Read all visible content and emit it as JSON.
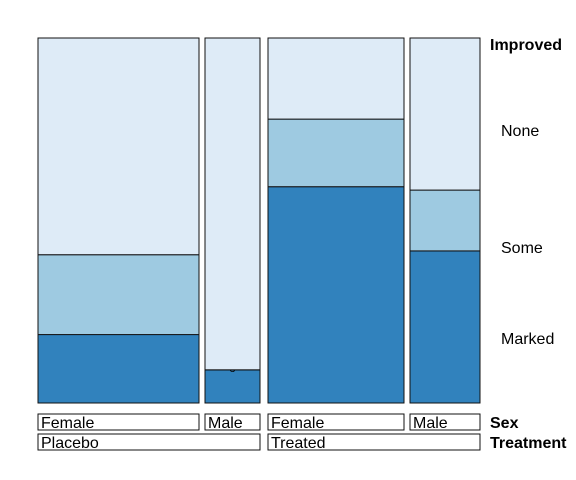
{
  "chart_data": {
    "type": "mosaic",
    "variables": {
      "response": "Improved",
      "row_1": "Sex",
      "row_2": "Treatment"
    },
    "treatment_levels": [
      "Placebo",
      "Treated"
    ],
    "sex_levels": [
      "Female",
      "Male"
    ],
    "improved_levels": [
      "None",
      "Some",
      "Marked"
    ],
    "colors": {
      "None": "#DEEBF7",
      "Some": "#9ECAE1",
      "Marked": "#3182BD"
    },
    "groups": [
      {
        "treatment": "Placebo",
        "sex": "Female",
        "counts": {
          "None": 19,
          "Some": 7,
          "Marked": 6
        }
      },
      {
        "treatment": "Placebo",
        "sex": "Male",
        "counts": {
          "None": 10,
          "Some": 0,
          "Marked": 1
        }
      },
      {
        "treatment": "Treated",
        "sex": "Female",
        "counts": {
          "None": 6,
          "Some": 5,
          "Marked": 16
        }
      },
      {
        "treatment": "Treated",
        "sex": "Male",
        "counts": {
          "None": 5,
          "Some": 2,
          "Marked": 5
        }
      }
    ],
    "zero_cell_marker": "o"
  }
}
